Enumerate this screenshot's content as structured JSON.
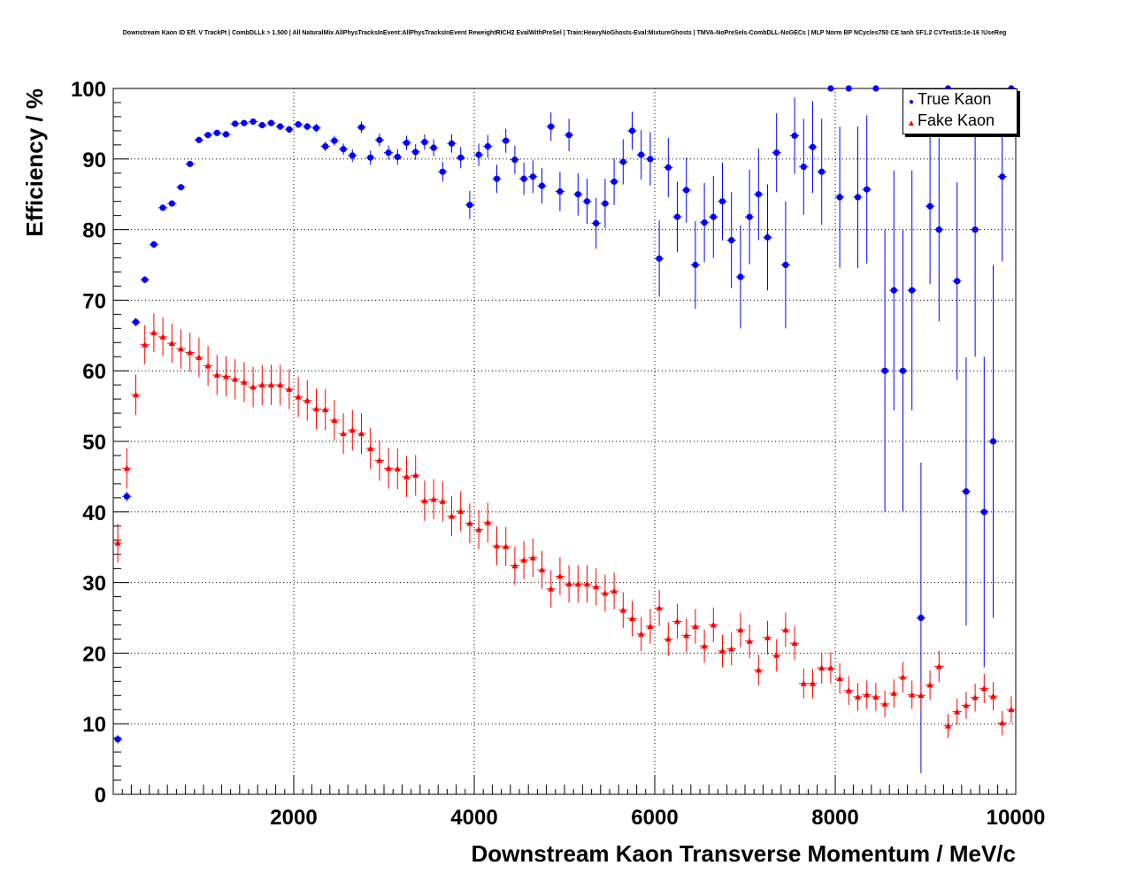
{
  "chart_data": {
    "type": "scatter",
    "title": "Downstream Kaon ID Eff. V TrackPt | CombDLLk > 1.500 | All NaturalMix AllPhysTracksInEvent:AllPhysTracksInEvent ReweightRICH2 EvalWithPreSel | Train:HeavyNoGhosts-Eval:MixtureGhosts | TMVA-NoPreSels-CombDLL-NoGECs | MLP Norm BP NCycles750 CE tanh SF1.2 CVTest15:1e-16 !UseReg",
    "xlabel": "Downstream Kaon Transverse Momentum / MeV/c",
    "ylabel": "Efficiency / %",
    "xlim": [
      0,
      10000
    ],
    "ylim": [
      0,
      100
    ],
    "x_tick_labels": [
      "2000",
      "4000",
      "6000",
      "8000",
      "10000"
    ],
    "y_tick_labels": [
      "0",
      "10",
      "20",
      "30",
      "40",
      "50",
      "60",
      "70",
      "80",
      "90",
      "100"
    ],
    "grid": true,
    "legend_position": "top-right",
    "bin_width": 100,
    "series": [
      {
        "name": "True Kaon",
        "color": "#0000ff",
        "marker": "circle",
        "x": [
          50,
          150,
          250,
          350,
          450,
          550,
          650,
          750,
          850,
          950,
          1050,
          1150,
          1250,
          1350,
          1450,
          1550,
          1650,
          1750,
          1850,
          1950,
          2050,
          2150,
          2250,
          2350,
          2450,
          2550,
          2650,
          2750,
          2850,
          2950,
          3050,
          3150,
          3250,
          3350,
          3450,
          3550,
          3650,
          3750,
          3850,
          3950,
          4050,
          4150,
          4250,
          4350,
          4450,
          4550,
          4650,
          4750,
          4850,
          4950,
          5050,
          5150,
          5250,
          5350,
          5450,
          5550,
          5650,
          5750,
          5850,
          5950,
          6050,
          6150,
          6250,
          6350,
          6450,
          6550,
          6650,
          6750,
          6850,
          6950,
          7050,
          7150,
          7250,
          7350,
          7450,
          7550,
          7650,
          7750,
          7850,
          7950,
          8050,
          8150,
          8250,
          8350,
          8450,
          8550,
          8650,
          8750,
          8850,
          8950,
          9050,
          9150,
          9250,
          9350,
          9450,
          9550,
          9650,
          9750,
          9850,
          9950
        ],
        "y": [
          7.8,
          42.2,
          66.9,
          72.9,
          77.9,
          83.1,
          83.7,
          86.0,
          89.3,
          92.7,
          93.4,
          93.7,
          93.5,
          95.0,
          95.1,
          95.3,
          94.8,
          95.1,
          94.6,
          94.2,
          94.9,
          94.6,
          94.4,
          91.8,
          92.6,
          91.4,
          90.5,
          94.5,
          90.2,
          92.7,
          90.9,
          90.3,
          92.3,
          91.0,
          92.4,
          91.6,
          88.2,
          92.2,
          90.2,
          83.5,
          90.6,
          91.8,
          87.2,
          92.6,
          89.9,
          87.2,
          87.5,
          86.2,
          94.6,
          85.4,
          93.4,
          85.0,
          84.0,
          80.9,
          83.7,
          86.8,
          89.6,
          94.0,
          90.6,
          90.0,
          75.9,
          88.8,
          81.8,
          85.6,
          75.0,
          81.0,
          81.8,
          84.0,
          78.5,
          73.3,
          81.8,
          85.0,
          78.9,
          90.9,
          75.0,
          93.3,
          88.9,
          91.7,
          88.2,
          100.0,
          84.6,
          100.0,
          84.6,
          85.7,
          100.0,
          60.0,
          71.4,
          60.0,
          71.4,
          25.0,
          83.3,
          80.0,
          100.0,
          72.7,
          42.9,
          80.0,
          40.0,
          50.0,
          87.5,
          100.0
        ],
        "yerr": [
          0.6,
          0.7,
          0.6,
          0.5,
          0.5,
          0.4,
          0.4,
          0.4,
          0.4,
          0.4,
          0.4,
          0.4,
          0.4,
          0.4,
          0.4,
          0.4,
          0.4,
          0.4,
          0.5,
          0.5,
          0.5,
          0.5,
          0.6,
          0.7,
          0.7,
          0.8,
          0.9,
          0.8,
          1.0,
          0.9,
          1.0,
          1.1,
          1.0,
          1.1,
          1.1,
          1.2,
          1.4,
          1.3,
          1.5,
          2.0,
          1.6,
          1.6,
          2.0,
          1.7,
          2.0,
          2.3,
          2.3,
          2.5,
          2.0,
          2.8,
          2.3,
          3.0,
          3.2,
          3.6,
          3.5,
          3.3,
          3.2,
          2.7,
          3.5,
          3.8,
          5.4,
          4.2,
          5.0,
          4.6,
          6.2,
          5.6,
          5.8,
          5.5,
          6.8,
          7.3,
          6.7,
          6.5,
          7.5,
          5.6,
          9.0,
          5.4,
          6.8,
          6.5,
          7.5,
          0,
          10.0,
          0,
          10.0,
          10.5,
          0,
          20.0,
          17.0,
          20.0,
          17.0,
          22.0,
          11.0,
          13.0,
          0,
          14.0,
          19.0,
          18.0,
          22.0,
          25.0,
          12.0,
          0
        ]
      },
      {
        "name": "Fake Kaon",
        "color": "#ff0000",
        "marker": "triangle",
        "x": [
          50,
          150,
          250,
          350,
          450,
          550,
          650,
          750,
          850,
          950,
          1050,
          1150,
          1250,
          1350,
          1450,
          1550,
          1650,
          1750,
          1850,
          1950,
          2050,
          2150,
          2250,
          2350,
          2450,
          2550,
          2650,
          2750,
          2850,
          2950,
          3050,
          3150,
          3250,
          3350,
          3450,
          3550,
          3650,
          3750,
          3850,
          3950,
          4050,
          4150,
          4250,
          4350,
          4450,
          4550,
          4650,
          4750,
          4850,
          4950,
          5050,
          5150,
          5250,
          5350,
          5450,
          5550,
          5650,
          5750,
          5850,
          5950,
          6050,
          6150,
          6250,
          6350,
          6450,
          6550,
          6650,
          6750,
          6850,
          6950,
          7050,
          7150,
          7250,
          7350,
          7450,
          7550,
          7650,
          7750,
          7850,
          7950,
          8050,
          8150,
          8250,
          8350,
          8450,
          8550,
          8650,
          8750,
          8850,
          8950,
          9050,
          9150,
          9250,
          9350,
          9450,
          9550,
          9650,
          9750,
          9850,
          9950
        ],
        "y": [
          35.6,
          46.2,
          56.6,
          63.7,
          65.4,
          64.8,
          63.9,
          63.1,
          62.6,
          61.9,
          60.7,
          59.4,
          59.2,
          58.8,
          58.4,
          57.7,
          58.0,
          58.0,
          58.0,
          57.4,
          56.3,
          55.8,
          54.6,
          54.5,
          53.0,
          51.1,
          51.6,
          51.1,
          49.0,
          47.3,
          46.2,
          46.1,
          45.0,
          45.2,
          41.6,
          41.8,
          41.5,
          39.4,
          40.1,
          38.4,
          37.5,
          38.5,
          35.2,
          35.1,
          32.4,
          33.2,
          33.5,
          31.8,
          29.1,
          30.9,
          29.8,
          29.8,
          29.8,
          29.4,
          28.5,
          28.8,
          26.1,
          24.9,
          22.7,
          23.8,
          26.4,
          22.0,
          24.5,
          22.5,
          23.8,
          21.0,
          24.0,
          20.3,
          20.6,
          23.3,
          21.7,
          17.6,
          22.2,
          19.7,
          23.3,
          21.4,
          15.7,
          15.7,
          17.9,
          17.9,
          16.4,
          14.7,
          13.8,
          14.1,
          13.8,
          12.8,
          14.3,
          16.6,
          14.1,
          14.0,
          15.5,
          18.1,
          9.7,
          11.7,
          12.6,
          13.7,
          15.0,
          13.9,
          10.1,
          12.0
        ]
      }
    ]
  }
}
